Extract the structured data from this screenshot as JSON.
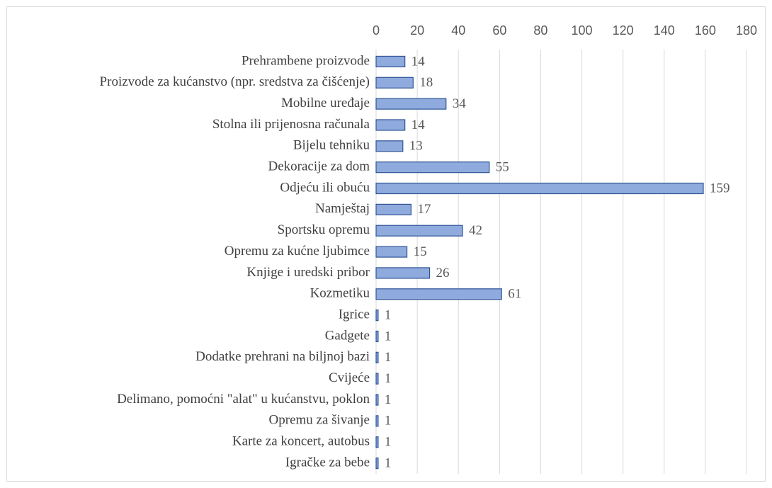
{
  "chart_data": {
    "type": "bar",
    "orientation": "horizontal",
    "categories": [
      "Prehrambene proizvode",
      "Proizvode za kućanstvo (npr. sredstva za čišćenje)",
      "Mobilne uređaje",
      "Stolna ili prijenosna računala",
      "Bijelu tehniku",
      "Dekoracije za dom",
      "Odjeću ili obuću",
      "Namještaj",
      "Sportsku opremu",
      "Opremu za kućne ljubimce",
      "Knjige i uredski pribor",
      "Kozmetiku",
      "Igrice",
      "Gadgete",
      "Dodatke prehrani na biljnoj bazi",
      "Cvijeće",
      "Delimano, pomoćni \"alat\" u kućanstvu, poklon",
      "Opremu za šivanje",
      "Karte za koncert, autobus",
      "Igračke za bebe"
    ],
    "values": [
      14,
      18,
      34,
      14,
      13,
      55,
      159,
      17,
      42,
      15,
      26,
      61,
      1,
      1,
      1,
      1,
      1,
      1,
      1,
      1
    ],
    "color": "#8faadc",
    "edge_color": "#2f5597",
    "xlim": [
      0,
      180
    ],
    "xticks": [
      0,
      20,
      40,
      60,
      80,
      100,
      120,
      140,
      160,
      180
    ],
    "grid": true
  }
}
